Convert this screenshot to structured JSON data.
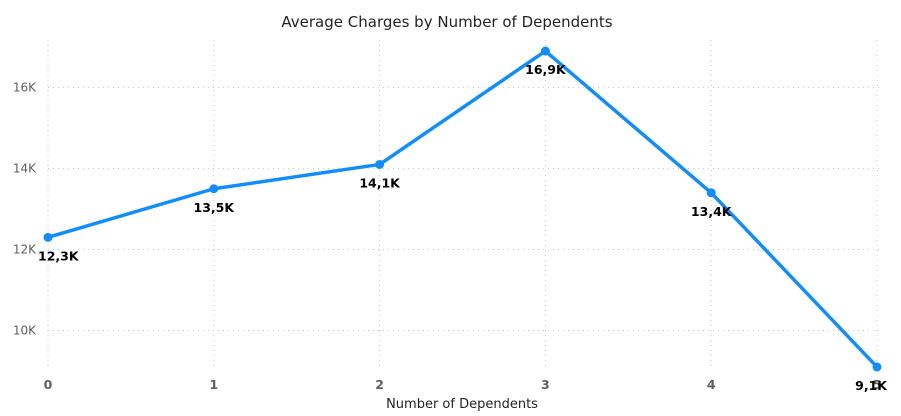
{
  "chart_data": {
    "type": "line",
    "title": "Average Charges by Number of Dependents",
    "xlabel": "Number of Dependents",
    "ylabel": "",
    "categories": [
      "0",
      "1",
      "2",
      "3",
      "4",
      "5"
    ],
    "series": [
      {
        "values": [
          12300,
          13500,
          14100,
          16900,
          13400,
          9100
        ],
        "labels": [
          "12,3K",
          "13,5K",
          "14,1K",
          "16,9K",
          "13,4K",
          "9,1K"
        ],
        "color": "#118dff"
      }
    ],
    "y_ticks": [
      {
        "value": 10000,
        "label": "10K"
      },
      {
        "value": 12000,
        "label": "12K"
      },
      {
        "value": 14000,
        "label": "14K"
      },
      {
        "value": 16000,
        "label": "16K"
      }
    ],
    "ylim": [
      9000,
      17000
    ],
    "grid": true,
    "legend": "none"
  }
}
